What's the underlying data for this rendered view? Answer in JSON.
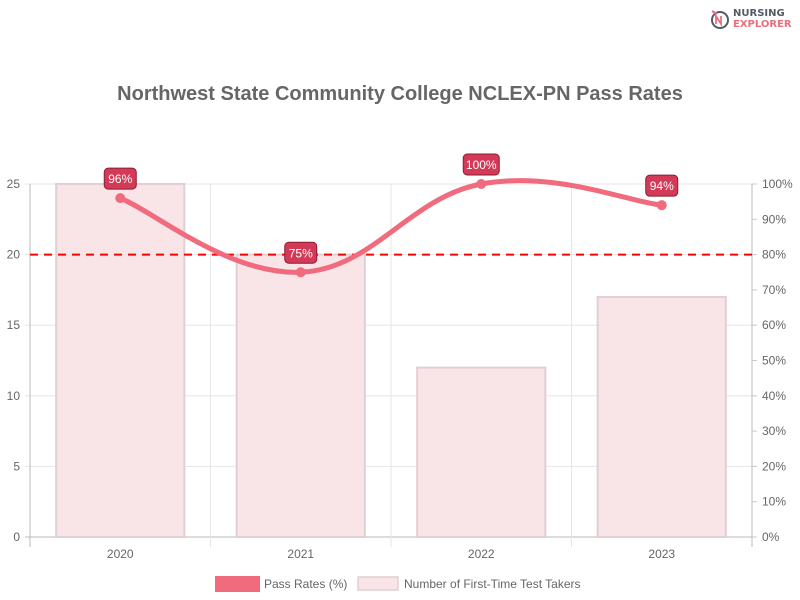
{
  "logo": {
    "line1": "NURSING",
    "line2": "EXPLORER",
    "mark": "NE"
  },
  "chart_data": {
    "type": "bar",
    "title": "Northwest State Community College NCLEX-PN Pass Rates",
    "categories": [
      "2020",
      "2021",
      "2022",
      "2023"
    ],
    "series": [
      {
        "name": "Pass Rates (%)",
        "type": "line",
        "axis": "right",
        "values": [
          96,
          75,
          100,
          94
        ],
        "labels": [
          "96%",
          "75%",
          "100%",
          "94%"
        ],
        "color": "#f06b7e"
      },
      {
        "name": "Number of First-Time Test Takers",
        "type": "bar",
        "axis": "left",
        "values": [
          25,
          20,
          12,
          17
        ],
        "color": "#f9e4e8"
      }
    ],
    "y_left": {
      "ylim": [
        0,
        25
      ],
      "ticks": [
        "0",
        "5",
        "10",
        "15",
        "20",
        "25"
      ]
    },
    "y_right": {
      "ylim": [
        0,
        100
      ],
      "ticks": [
        "0%",
        "10%",
        "20%",
        "30%",
        "40%",
        "50%",
        "60%",
        "70%",
        "80%",
        "90%",
        "100%"
      ]
    },
    "threshold": {
      "value": 80,
      "axis": "right",
      "color": "#ff0000",
      "style": "dashed"
    },
    "grid": true,
    "legend": "bottom"
  }
}
